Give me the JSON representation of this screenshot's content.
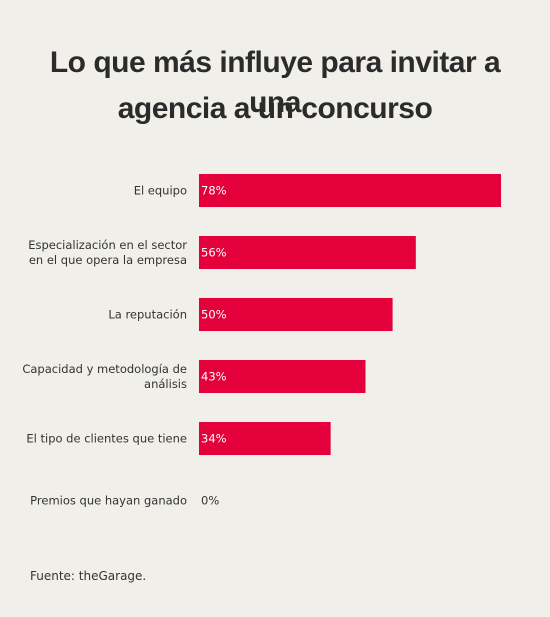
{
  "title_line1": "Lo que más influye para invitar a una",
  "title_line2": "agencia a un concurso",
  "source": "Fuente: theGarage.",
  "colors": {
    "bar": "#e4003b",
    "background": "#f0efea",
    "text": "#333333",
    "bar_label": "#ffffff"
  },
  "chart_data": {
    "type": "bar",
    "orientation": "horizontal",
    "categories": [
      [
        "El equipo"
      ],
      [
        "Especialización en el sector",
        "en el que opera la empresa"
      ],
      [
        "La reputación"
      ],
      [
        "Capacidad y metodología de",
        "análisis"
      ],
      [
        "El tipo de clientes que tiene"
      ],
      [
        "Premios que hayan ganado"
      ]
    ],
    "values": [
      78,
      56,
      50,
      43,
      34,
      0
    ],
    "value_labels": [
      "78%",
      "56%",
      "50%",
      "43%",
      "34%",
      "0%"
    ],
    "unit": "%",
    "xlim": [
      0,
      78
    ],
    "grid": false,
    "legend": "none"
  }
}
